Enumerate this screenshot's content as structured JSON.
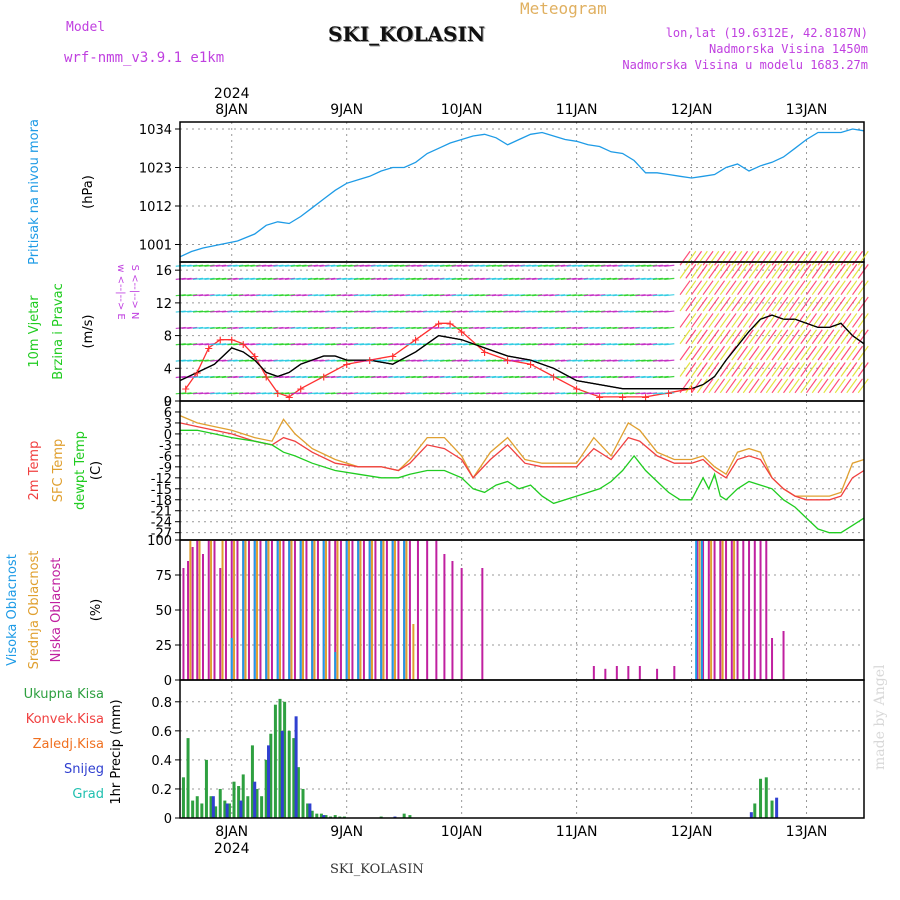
{
  "header": {
    "model_label": "Model",
    "model_name": "wrf-nmm_v3.9.1 e1km",
    "station": "SKI_KOLASIN",
    "product": "Meteogram",
    "coords": "lon,lat (19.6312E, 42.8187N)",
    "altitude": "Nadmorska Visina 1450m",
    "model_altitude": "Nadmorska Visina u modelu 1683.27m",
    "station_footer": "SKI_KOLASIN",
    "credit": "made by Angel",
    "year_top": "2024",
    "year_bottom": "2024"
  },
  "colors": {
    "pressure": "#1e9be6",
    "wind_speed": "#000000",
    "gust": "#ff3030",
    "temp_2m": "#f04040",
    "temp_sfc": "#e0a030",
    "dewpoint": "#20cc20",
    "cloud_high": "#1e9be6",
    "cloud_mid": "#e0a030",
    "cloud_low": "#c020a0",
    "precip_total": "#2ea040",
    "precip_conv": "#f04040",
    "precip_frz": "#f07020",
    "precip_snow": "#3040d0",
    "precip_hail": "#20c0b0",
    "purple_text": "#c040e0"
  },
  "chart_data": [
    {
      "type": "line",
      "id": "pressure",
      "ylabels": [
        "Pritisak na nivou mora",
        "(hPa)"
      ],
      "ylim": [
        996,
        1036
      ],
      "yticks": [
        1001,
        1012,
        1023,
        1034
      ],
      "xlim": [
        7.55,
        13.5
      ],
      "xticks": [
        "8JAN",
        "9JAN",
        "10JAN",
        "11JAN",
        "12JAN",
        "13JAN"
      ],
      "grid": true,
      "series": [
        {
          "key": "pressure",
          "x": [
            7.55,
            7.65,
            7.75,
            7.9,
            8.05,
            8.2,
            8.3,
            8.4,
            8.5,
            8.6,
            8.7,
            8.8,
            8.9,
            9.0,
            9.1,
            9.2,
            9.3,
            9.4,
            9.5,
            9.6,
            9.7,
            9.8,
            9.9,
            10.0,
            10.1,
            10.2,
            10.3,
            10.4,
            10.5,
            10.6,
            10.7,
            10.8,
            10.9,
            11.0,
            11.1,
            11.2,
            11.3,
            11.4,
            11.5,
            11.6,
            11.7,
            11.8,
            11.9,
            12.0,
            12.1,
            12.2,
            12.3,
            12.4,
            12.5,
            12.6,
            12.7,
            12.8,
            12.9,
            13.0,
            13.1,
            13.2,
            13.3,
            13.4,
            13.5
          ],
          "y": [
            997.5,
            999.0,
            1000.0,
            1001.0,
            1002.0,
            1004.0,
            1006.5,
            1007.5,
            1007.0,
            1009.0,
            1011.5,
            1014.0,
            1016.5,
            1018.5,
            1019.5,
            1020.5,
            1022.0,
            1023.0,
            1023.0,
            1024.5,
            1027.0,
            1028.5,
            1030.0,
            1031.0,
            1032.0,
            1032.5,
            1031.5,
            1029.5,
            1031.0,
            1032.5,
            1033.0,
            1032.0,
            1031.0,
            1030.5,
            1029.5,
            1029.0,
            1027.5,
            1027.0,
            1025.0,
            1021.5,
            1021.5,
            1021.0,
            1020.5,
            1020.0,
            1020.5,
            1021.0,
            1023.0,
            1024.0,
            1022.0,
            1023.5,
            1024.5,
            1026.0,
            1028.5,
            1031.0,
            1033.0,
            1033.0,
            1033.0,
            1034.0,
            1033.5
          ]
        }
      ]
    },
    {
      "type": "line",
      "id": "wind",
      "ylabels": [
        "10m Vjetar",
        "Brzina i Pravac",
        "(m/s)"
      ],
      "compass_label": "w <--|--> E\n S <--|--> N",
      "ylim": [
        0,
        17
      ],
      "yticks": [
        0,
        4,
        8,
        12,
        16
      ],
      "xlim": [
        7.55,
        13.5
      ],
      "grid": true,
      "series": [
        {
          "key": "wind_speed",
          "x": [
            7.55,
            7.7,
            7.85,
            8.0,
            8.1,
            8.2,
            8.3,
            8.4,
            8.5,
            8.6,
            8.7,
            8.8,
            8.9,
            9.0,
            9.2,
            9.4,
            9.6,
            9.8,
            10.0,
            10.2,
            10.4,
            10.6,
            10.8,
            11.0,
            11.2,
            11.4,
            11.6,
            11.8,
            12.0,
            12.1,
            12.2,
            12.3,
            12.5,
            12.6,
            12.7,
            12.8,
            12.9,
            13.0,
            13.1,
            13.2,
            13.3,
            13.4,
            13.5
          ],
          "y": [
            2.5,
            3.5,
            4.5,
            6.5,
            6.0,
            5.0,
            3.5,
            3.0,
            3.5,
            4.5,
            5.0,
            5.5,
            5.5,
            5.0,
            5.0,
            4.5,
            6.0,
            8.0,
            7.5,
            6.5,
            5.5,
            5.0,
            4.0,
            2.5,
            2.0,
            1.5,
            1.5,
            1.5,
            1.5,
            2.0,
            3.0,
            5.0,
            8.5,
            10.0,
            10.5,
            10.0,
            10.0,
            9.5,
            9.0,
            9.0,
            9.5,
            8.0,
            7.0
          ]
        },
        {
          "key": "gust",
          "x": [
            7.6,
            7.7,
            7.8,
            7.9,
            8.0,
            8.1,
            8.2,
            8.3,
            8.4,
            8.5,
            8.6,
            8.8,
            9.0,
            9.2,
            9.4,
            9.6,
            9.8,
            9.9,
            10.0,
            10.2,
            10.4,
            10.6,
            10.8,
            11.0,
            11.2,
            11.4,
            11.6,
            11.8,
            12.0
          ],
          "y": [
            1.5,
            3.5,
            6.5,
            7.5,
            7.5,
            7.0,
            5.5,
            3.0,
            1.0,
            0.5,
            1.5,
            3.0,
            4.5,
            5.0,
            5.5,
            7.5,
            9.5,
            9.5,
            8.5,
            6.0,
            5.0,
            4.5,
            3.0,
            1.5,
            0.5,
            0.5,
            0.5,
            1.0,
            1.5
          ]
        }
      ]
    },
    {
      "type": "line",
      "id": "temperature",
      "ylabels": [
        "2m Temp",
        "SFC Temp",
        "dewpt Temp",
        "(C)"
      ],
      "ylim": [
        -29,
        9
      ],
      "yticks": [
        9,
        6,
        3,
        0,
        -3,
        -6,
        -9,
        -12,
        -15,
        -18,
        -21,
        -24,
        -27
      ],
      "xlim": [
        7.55,
        13.5
      ],
      "grid": true,
      "series": [
        {
          "key": "temp_sfc",
          "x": [
            7.55,
            7.7,
            7.85,
            8.0,
            8.2,
            8.35,
            8.45,
            8.55,
            8.7,
            8.9,
            9.1,
            9.3,
            9.45,
            9.55,
            9.7,
            9.85,
            10.0,
            10.1,
            10.25,
            10.4,
            10.55,
            10.7,
            10.85,
            11.0,
            11.15,
            11.3,
            11.45,
            11.55,
            11.7,
            11.85,
            12.0,
            12.1,
            12.2,
            12.3,
            12.4,
            12.5,
            12.6,
            12.7,
            12.8,
            12.9,
            13.0,
            13.1,
            13.2,
            13.3,
            13.4,
            13.5
          ],
          "y": [
            5,
            3,
            2,
            1,
            -1,
            -2,
            4,
            0,
            -4,
            -7,
            -9,
            -9,
            -10,
            -7,
            -1,
            -1,
            -6,
            -12,
            -5,
            -1,
            -7,
            -8,
            -8,
            -8,
            -1,
            -6,
            3,
            1,
            -5,
            -7,
            -7,
            -6,
            -9,
            -11,
            -5,
            -4,
            -5,
            -12,
            -15,
            -17,
            -17,
            -17,
            -17,
            -16,
            -8,
            -7
          ]
        },
        {
          "key": "temp_2m",
          "x": [
            7.55,
            7.7,
            7.85,
            8.0,
            8.2,
            8.35,
            8.45,
            8.55,
            8.7,
            8.9,
            9.1,
            9.3,
            9.45,
            9.55,
            9.7,
            9.85,
            10.0,
            10.1,
            10.25,
            10.4,
            10.55,
            10.7,
            10.85,
            11.0,
            11.15,
            11.3,
            11.45,
            11.55,
            11.7,
            11.85,
            12.0,
            12.1,
            12.2,
            12.3,
            12.4,
            12.5,
            12.6,
            12.7,
            12.8,
            12.9,
            13.0,
            13.1,
            13.2,
            13.3,
            13.4,
            13.5
          ],
          "y": [
            3,
            2,
            1,
            0,
            -2,
            -3,
            -1,
            -2,
            -5,
            -8,
            -9,
            -9,
            -10,
            -8,
            -3,
            -4,
            -7,
            -12,
            -7,
            -3,
            -8,
            -9,
            -9,
            -9,
            -4,
            -7,
            -1,
            -2,
            -6,
            -8,
            -8,
            -7,
            -10,
            -12,
            -7,
            -6,
            -7,
            -12,
            -15,
            -17,
            -18,
            -18,
            -18,
            -17,
            -12,
            -10
          ]
        },
        {
          "key": "dewpoint",
          "x": [
            7.55,
            7.7,
            7.85,
            8.0,
            8.2,
            8.35,
            8.45,
            8.55,
            8.7,
            8.9,
            9.1,
            9.3,
            9.45,
            9.55,
            9.7,
            9.85,
            10.0,
            10.1,
            10.2,
            10.3,
            10.4,
            10.5,
            10.6,
            10.7,
            10.8,
            11.0,
            11.2,
            11.3,
            11.4,
            11.5,
            11.6,
            11.7,
            11.8,
            11.9,
            12.0,
            12.1,
            12.15,
            12.2,
            12.25,
            12.3,
            12.4,
            12.5,
            12.6,
            12.7,
            12.8,
            12.9,
            13.0,
            13.1,
            13.2,
            13.3,
            13.4,
            13.5
          ],
          "y": [
            1,
            1,
            0,
            -1,
            -2,
            -3,
            -5,
            -6,
            -8,
            -10,
            -11,
            -12,
            -12,
            -11,
            -10,
            -10,
            -12,
            -15,
            -16,
            -14,
            -13,
            -15,
            -14,
            -17,
            -19,
            -17,
            -15,
            -13,
            -10,
            -6,
            -10,
            -13,
            -16,
            -18,
            -18,
            -12,
            -15,
            -11,
            -17,
            -18,
            -15,
            -13,
            -14,
            -15,
            -18,
            -20,
            -23,
            -26,
            -27,
            -27,
            -25,
            -23
          ]
        }
      ]
    },
    {
      "type": "bar",
      "id": "clouds",
      "ylabels": [
        "Visoka Oblacnost",
        "Srednja Oblacnost",
        "Niska Oblacnost",
        "(%)"
      ],
      "ylim": [
        0,
        100
      ],
      "yticks": [
        0,
        25,
        50,
        75,
        100
      ],
      "xlim": [
        7.55,
        13.5
      ],
      "grid": true,
      "series": [
        {
          "key": "cloud_low",
          "x": [
            7.58,
            7.62,
            7.66,
            7.7,
            7.75,
            7.8,
            7.85,
            7.9,
            7.95,
            8.0,
            8.05,
            8.1,
            8.15,
            8.2,
            8.25,
            8.3,
            8.35,
            8.4,
            8.45,
            8.5,
            8.55,
            8.6,
            8.65,
            8.7,
            8.75,
            8.8,
            8.85,
            8.9,
            8.95,
            9.0,
            9.05,
            9.1,
            9.15,
            9.2,
            9.25,
            9.3,
            9.35,
            9.4,
            9.45,
            9.5,
            9.55,
            9.62,
            9.7,
            9.78,
            9.85,
            9.92,
            10.0,
            10.18,
            11.15,
            11.25,
            11.35,
            11.45,
            11.55,
            11.7,
            11.85,
            12.05,
            12.1,
            12.15,
            12.2,
            12.25,
            12.3,
            12.35,
            12.4,
            12.45,
            12.5,
            12.55,
            12.6,
            12.65,
            12.7,
            12.8
          ],
          "y": [
            80,
            85,
            95,
            100,
            90,
            100,
            100,
            80,
            100,
            100,
            100,
            100,
            100,
            100,
            100,
            100,
            100,
            100,
            100,
            100,
            100,
            100,
            100,
            100,
            100,
            100,
            100,
            100,
            100,
            100,
            100,
            100,
            100,
            100,
            100,
            100,
            100,
            100,
            100,
            100,
            100,
            100,
            100,
            100,
            90,
            85,
            80,
            80,
            10,
            8,
            10,
            10,
            10,
            8,
            10,
            100,
            100,
            100,
            100,
            100,
            100,
            100,
            100,
            100,
            100,
            100,
            100,
            100,
            30,
            35
          ]
        },
        {
          "key": "cloud_mid",
          "x": [
            7.64,
            7.72,
            7.82,
            7.92,
            8.02,
            8.12,
            8.22,
            8.32,
            8.42,
            8.52,
            8.62,
            8.72,
            8.82,
            8.92,
            9.02,
            9.12,
            9.22,
            9.32,
            9.42,
            9.52,
            9.58,
            12.07,
            12.17,
            12.27,
            12.37
          ],
          "y": [
            100,
            100,
            100,
            100,
            100,
            100,
            100,
            100,
            100,
            100,
            100,
            100,
            100,
            100,
            100,
            100,
            100,
            100,
            100,
            100,
            40,
            100,
            100,
            100,
            100
          ]
        },
        {
          "key": "cloud_high",
          "x": [
            8.0,
            8.1,
            8.2,
            8.3,
            8.4,
            8.5,
            8.6,
            8.7,
            8.8,
            8.9,
            9.0,
            9.1,
            9.2,
            9.3,
            9.4,
            9.5,
            12.04,
            12.09
          ],
          "y": [
            30,
            100,
            100,
            100,
            100,
            100,
            100,
            100,
            100,
            20,
            100,
            100,
            100,
            100,
            100,
            100,
            100,
            100
          ]
        }
      ]
    },
    {
      "type": "bar",
      "id": "precip",
      "ylabels": [
        "Ukupna Kisa",
        "Konvek.Kisa",
        "Zaledj.Kisa",
        "Snijeg",
        "Grad",
        "1hr Precip (mm)"
      ],
      "ylim": [
        0,
        0.95
      ],
      "yticks": [
        0,
        0.2,
        0.4,
        0.6,
        0.8
      ],
      "xlim": [
        7.55,
        13.5
      ],
      "grid": true,
      "series": [
        {
          "key": "precip_total",
          "x": [
            7.58,
            7.62,
            7.66,
            7.7,
            7.74,
            7.78,
            7.82,
            7.86,
            7.9,
            7.94,
            7.98,
            8.02,
            8.06,
            8.1,
            8.14,
            8.18,
            8.22,
            8.26,
            8.3,
            8.34,
            8.38,
            8.42,
            8.46,
            8.5,
            8.54,
            8.58,
            8.62,
            8.66,
            8.7,
            8.74,
            8.78,
            8.82,
            8.86,
            8.9,
            8.94,
            8.98,
            9.3,
            9.5,
            9.55,
            12.55,
            12.6,
            12.65,
            12.7
          ],
          "y": [
            0.28,
            0.55,
            0.12,
            0.15,
            0.1,
            0.4,
            0.15,
            0.08,
            0.2,
            0.12,
            0.1,
            0.25,
            0.22,
            0.3,
            0.15,
            0.5,
            0.2,
            0.15,
            0.4,
            0.58,
            0.78,
            0.82,
            0.8,
            0.6,
            0.55,
            0.35,
            0.2,
            0.1,
            0.05,
            0.03,
            0.03,
            0.02,
            0.01,
            0.02,
            0.01,
            0.01,
            0.01,
            0.03,
            0.02,
            0.1,
            0.27,
            0.28,
            0.12
          ]
        },
        {
          "key": "precip_snow",
          "x": [
            7.84,
            7.96,
            8.08,
            8.2,
            8.32,
            8.44,
            8.56,
            8.68,
            8.8,
            9.42,
            12.52,
            12.74
          ],
          "y": [
            0.15,
            0.1,
            0.12,
            0.25,
            0.5,
            0.6,
            0.7,
            0.1,
            0.02,
            0.01,
            0.04,
            0.14
          ]
        }
      ]
    }
  ]
}
